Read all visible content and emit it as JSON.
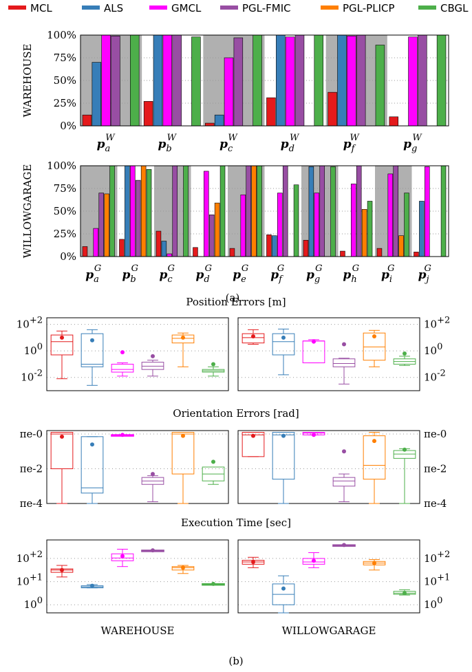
{
  "legend": [
    {
      "name": "MCL",
      "color": "#e41a1c"
    },
    {
      "name": "ALS",
      "color": "#377eb8"
    },
    {
      "name": "GMCL",
      "color": "#ff00ff"
    },
    {
      "name": "PGL-FMIC",
      "color": "#984ea3"
    },
    {
      "name": "PGL-PLICP",
      "color": "#ff7f00"
    },
    {
      "name": "CBGL",
      "color": "#4daf4a"
    }
  ],
  "caption_a": "(a)",
  "caption_b": "(b)",
  "chart_data": [
    {
      "type": "bar",
      "ylabel": "WAREHOUSE",
      "yticks": [
        "0%",
        "25%",
        "50%",
        "75%",
        "100%"
      ],
      "ylim": [
        0,
        100
      ],
      "categories": [
        {
          "base": "p",
          "sub": "a",
          "sup": "W"
        },
        {
          "base": "p",
          "sub": "b",
          "sup": "W"
        },
        {
          "base": "p",
          "sub": "c",
          "sup": "W"
        },
        {
          "base": "p",
          "sub": "d",
          "sup": "W"
        },
        {
          "base": "p",
          "sub": "f",
          "sup": "W"
        },
        {
          "base": "p",
          "sub": "g",
          "sup": "W"
        }
      ],
      "shaded": [
        true,
        false,
        true,
        false,
        true,
        false
      ],
      "series": [
        {
          "name": "MCL",
          "values": [
            12,
            27,
            3,
            31,
            37,
            10
          ]
        },
        {
          "name": "ALS",
          "values": [
            70,
            100,
            12,
            100,
            100,
            0
          ]
        },
        {
          "name": "GMCL",
          "values": [
            100,
            100,
            75,
            98,
            99,
            98
          ]
        },
        {
          "name": "PGL-FMIC",
          "values": [
            99,
            100,
            97,
            100,
            100,
            100
          ]
        },
        {
          "name": "PGL-PLICP",
          "values": [
            0,
            0,
            0,
            0,
            0,
            0
          ]
        },
        {
          "name": "CBGL",
          "values": [
            100,
            98,
            100,
            100,
            89,
            100
          ]
        }
      ]
    },
    {
      "type": "bar",
      "ylabel": "WILLOWGARAGE",
      "yticks": [
        "0%",
        "25%",
        "50%",
        "75%",
        "100%"
      ],
      "ylim": [
        0,
        100
      ],
      "categories": [
        {
          "base": "p",
          "sub": "a",
          "sup": "G"
        },
        {
          "base": "p",
          "sub": "b",
          "sup": "G"
        },
        {
          "base": "p",
          "sub": "c",
          "sup": "G"
        },
        {
          "base": "p",
          "sub": "d",
          "sup": "G"
        },
        {
          "base": "p",
          "sub": "e",
          "sup": "G"
        },
        {
          "base": "p",
          "sub": "f",
          "sup": "G"
        },
        {
          "base": "p",
          "sub": "g",
          "sup": "G"
        },
        {
          "base": "p",
          "sub": "h",
          "sup": "G"
        },
        {
          "base": "p",
          "sub": "i",
          "sup": "G"
        },
        {
          "base": "p",
          "sub": "j",
          "sup": "G"
        }
      ],
      "shaded": [
        true,
        false,
        true,
        false,
        true,
        false,
        true,
        false,
        true,
        false
      ],
      "series": [
        {
          "name": "MCL",
          "values": [
            11,
            19,
            28,
            10,
            9,
            24,
            18,
            6,
            9,
            5
          ]
        },
        {
          "name": "ALS",
          "values": [
            0,
            100,
            17,
            0,
            0,
            23,
            99,
            0,
            0,
            61
          ]
        },
        {
          "name": "GMCL",
          "values": [
            31,
            100,
            3,
            94,
            68,
            70,
            70,
            80,
            91,
            99
          ]
        },
        {
          "name": "PGL-FMIC",
          "values": [
            70,
            84,
            100,
            46,
            100,
            100,
            100,
            100,
            100,
            0
          ]
        },
        {
          "name": "PGL-PLICP",
          "values": [
            69,
            100,
            0,
            59,
            100,
            0,
            0,
            52,
            23,
            0
          ]
        },
        {
          "name": "CBGL",
          "values": [
            100,
            96,
            100,
            100,
            100,
            79,
            99,
            61,
            70,
            100
          ]
        }
      ]
    },
    {
      "type": "box",
      "title": "Position Errors [m]",
      "scale": "log",
      "ylim_log10": [
        -3,
        2.5
      ],
      "yticks": [
        {
          "log": 2,
          "label": "10^+2"
        },
        {
          "log": 0,
          "label": "10^0"
        },
        {
          "log": -2,
          "label": "10^-2"
        }
      ],
      "groups": [
        "WAREHOUSE",
        "WILLOWGARAGE"
      ],
      "boxes": [
        [
          {
            "series": "MCL",
            "whisker_low": -2.1,
            "q1": -0.3,
            "median": 0.7,
            "q3": 1.2,
            "whisker_high": 1.5,
            "mean": 1.0
          },
          {
            "series": "ALS",
            "whisker_low": -2.6,
            "q1": -1.2,
            "median": -1.0,
            "q3": 1.3,
            "whisker_high": 1.6,
            "mean": 0.8
          },
          {
            "series": "GMCL",
            "whisker_low": -1.9,
            "q1": -1.6,
            "median": -1.4,
            "q3": -1.0,
            "whisker_high": -0.9,
            "mean": -0.1
          },
          {
            "series": "PGL-FMIC",
            "whisker_low": -1.9,
            "q1": -1.4,
            "median": -1.15,
            "q3": -0.85,
            "whisker_high": -0.7,
            "mean": -0.4
          },
          {
            "series": "PGL-PLICP",
            "whisker_low": -1.2,
            "q1": 0.6,
            "median": 0.95,
            "q3": 1.2,
            "whisker_high": 1.35,
            "mean": 1.0
          },
          {
            "series": "CBGL",
            "whisker_low": -1.9,
            "q1": -1.6,
            "median": -1.5,
            "q3": -1.4,
            "whisker_high": -1.2,
            "mean": -1.0
          }
        ],
        [
          {
            "series": "MCL",
            "whisker_low": 0.5,
            "q1": 0.6,
            "median": 1.0,
            "q3": 1.3,
            "whisker_high": 1.6,
            "mean": 1.1
          },
          {
            "series": "ALS",
            "whisker_low": -1.8,
            "q1": -0.3,
            "median": 0.7,
            "q3": 1.3,
            "whisker_high": 1.65,
            "mean": 1.0
          },
          {
            "series": "GMCL",
            "whisker_low": -0.9,
            "q1": -0.9,
            "median": 0.75,
            "q3": 0.75,
            "whisker_high": 0.85,
            "mean": 0.7
          },
          {
            "series": "PGL-FMIC",
            "whisker_low": -2.5,
            "q1": -1.2,
            "median": -0.95,
            "q3": -0.6,
            "whisker_high": -0.55,
            "mean": 0.5
          },
          {
            "series": "PGL-PLICP",
            "whisker_low": -1.2,
            "q1": -0.7,
            "median": 0.3,
            "q3": 1.35,
            "whisker_high": 1.55,
            "mean": 1.1
          },
          {
            "series": "CBGL",
            "whisker_low": -1.1,
            "q1": -1.0,
            "median": -0.8,
            "q3": -0.6,
            "whisker_high": -0.4,
            "mean": -0.2
          }
        ]
      ]
    },
    {
      "type": "box",
      "title": "Orientation Errors [rad]",
      "scale": "log",
      "ylim_log10": [
        -4,
        0.2
      ],
      "yticks": [
        {
          "log": 0,
          "label": "πe-0"
        },
        {
          "log": -2,
          "label": "πe-2"
        },
        {
          "log": -4,
          "label": "πe-4"
        }
      ],
      "groups": [
        "WAREHOUSE",
        "WILLOWGARAGE"
      ],
      "boxes": [
        [
          {
            "series": "MCL",
            "whisker_low": -4,
            "q1": -2,
            "median": 0.0,
            "q3": 0.1,
            "whisker_high": 0.1,
            "mean": -0.15
          },
          {
            "series": "ALS",
            "whisker_low": -4,
            "q1": -3.4,
            "median": -3.1,
            "q3": -0.15,
            "whisker_high": -0.15,
            "mean": -0.6
          },
          {
            "series": "GMCL",
            "whisker_low": -0.05,
            "q1": -0.05,
            "median": -0.05,
            "q3": -0.05,
            "whisker_high": -0.05,
            "mean": -0.05
          },
          {
            "series": "PGL-FMIC",
            "whisker_low": -3.9,
            "q1": -2.9,
            "median": -2.7,
            "q3": -2.5,
            "whisker_high": -2.4,
            "mean": -2.3
          },
          {
            "series": "PGL-PLICP",
            "whisker_low": -4,
            "q1": -2.3,
            "median": 0.0,
            "q3": 0.1,
            "whisker_high": 0.1,
            "mean": -0.1
          },
          {
            "series": "CBGL",
            "whisker_low": -2.9,
            "q1": -2.7,
            "median": -2.3,
            "q3": -1.9,
            "whisker_high": -1.9,
            "mean": -1.6
          }
        ],
        [
          {
            "series": "MCL",
            "whisker_low": -1.3,
            "q1": -1.3,
            "median": -0.05,
            "q3": 0.1,
            "whisker_high": 0.1,
            "mean": -0.1
          },
          {
            "series": "ALS",
            "whisker_low": -4,
            "q1": -2.6,
            "median": -0.05,
            "q3": 0.1,
            "whisker_high": 0.1,
            "mean": -0.1
          },
          {
            "series": "GMCL",
            "whisker_low": -0.05,
            "q1": -0.05,
            "median": 0.05,
            "q3": 0.1,
            "whisker_high": 0.1,
            "mean": -0.05
          },
          {
            "series": "PGL-FMIC",
            "whisker_low": -3.9,
            "q1": -3.0,
            "median": -2.7,
            "q3": -2.5,
            "whisker_high": -2.3,
            "mean": -1.0
          },
          {
            "series": "PGL-PLICP",
            "whisker_low": -4,
            "q1": -2.6,
            "median": -1.8,
            "q3": -0.1,
            "whisker_high": 0.1,
            "mean": -0.4
          },
          {
            "series": "CBGL",
            "whisker_low": -4,
            "q1": -1.4,
            "median": -1.15,
            "q3": -0.95,
            "whisker_high": -0.85,
            "mean": -0.9
          }
        ]
      ]
    },
    {
      "type": "box",
      "title": "Execution Time [sec]",
      "scale": "log",
      "ylim_log10": [
        -0.35,
        2.8
      ],
      "yticks": [
        {
          "log": 2,
          "label": "10^+2"
        },
        {
          "log": 1,
          "label": "10^+1"
        },
        {
          "log": 0,
          "label": "10^0"
        }
      ],
      "groups": [
        "WAREHOUSE",
        "WILLOWGARAGE"
      ],
      "boxes": [
        [
          {
            "series": "MCL",
            "whisker_low": 1.2,
            "q1": 1.4,
            "median": 1.5,
            "q3": 1.55,
            "whisker_high": 1.7,
            "mean": 1.5
          },
          {
            "series": "ALS",
            "whisker_low": 0.73,
            "q1": 0.73,
            "median": 0.77,
            "q3": 0.82,
            "whisker_high": 0.87,
            "mean": 0.82
          },
          {
            "series": "GMCL",
            "whisker_low": 1.65,
            "q1": 1.9,
            "median": 2.02,
            "q3": 2.2,
            "whisker_high": 2.4,
            "mean": 2.1
          },
          {
            "series": "PGL-FMIC",
            "whisker_low": 2.35,
            "q1": 2.35,
            "median": 2.35,
            "q3": 2.35,
            "whisker_high": 2.35,
            "mean": 2.35
          },
          {
            "series": "PGL-PLICP",
            "whisker_low": 1.35,
            "q1": 1.5,
            "median": 1.6,
            "q3": 1.65,
            "whisker_high": 1.7,
            "mean": 1.6
          },
          {
            "series": "CBGL",
            "whisker_low": 0.9,
            "q1": 0.9,
            "median": 0.9,
            "q3": 0.9,
            "whisker_high": 0.9,
            "mean": 0.9
          }
        ],
        [
          {
            "series": "MCL",
            "whisker_low": 1.6,
            "q1": 1.75,
            "median": 1.85,
            "q3": 1.92,
            "whisker_high": 2.05,
            "mean": 1.85
          },
          {
            "series": "ALS",
            "whisker_low": -0.35,
            "q1": 0,
            "median": 0.45,
            "q3": 0.9,
            "whisker_high": 1.25,
            "mean": 0.7
          },
          {
            "series": "GMCL",
            "whisker_low": 1.6,
            "q1": 1.75,
            "median": 1.85,
            "q3": 2.0,
            "whisker_high": 2.25,
            "mean": 1.9
          },
          {
            "series": "PGL-FMIC",
            "whisker_low": 2.58,
            "q1": 2.58,
            "median": 2.58,
            "q3": 2.58,
            "whisker_high": 2.58,
            "mean": 2.58
          },
          {
            "series": "PGL-PLICP",
            "whisker_low": 1.5,
            "q1": 1.72,
            "median": 1.8,
            "q3": 1.87,
            "whisker_high": 1.95,
            "mean": 1.8
          },
          {
            "series": "CBGL",
            "whisker_low": 0.42,
            "q1": 0.45,
            "median": 0.5,
            "q3": 0.58,
            "whisker_high": 0.65,
            "mean": 0.5
          }
        ]
      ]
    }
  ]
}
